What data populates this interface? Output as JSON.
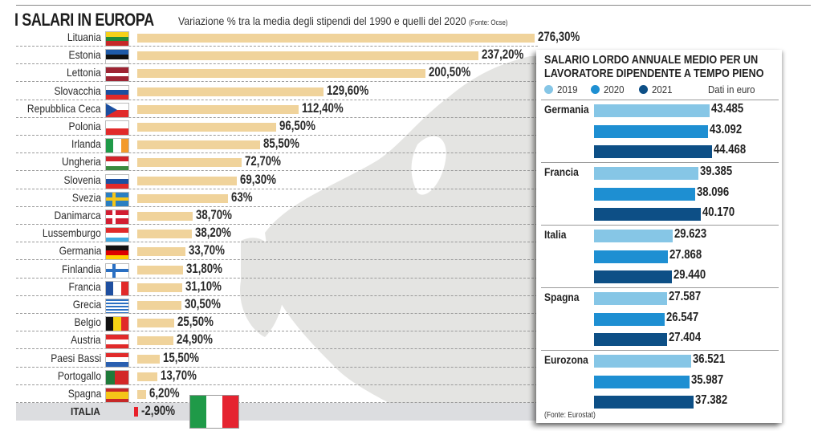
{
  "header": {
    "title": "I SALARI IN EUROPA",
    "subtitle": "Variazione % tra la media degli stipendi del 1990 e quelli del 2020",
    "subtitle_source": "(Fonte: Ocse)"
  },
  "colors": {
    "bar_positive": "#f0d39b",
    "bar_negative": "#e8202a",
    "year_2019": "#86c6e6",
    "year_2020": "#1e8fd2",
    "year_2021": "#0d4f86",
    "italia_row_bg": "#dcdde0"
  },
  "chart_data": [
    {
      "type": "bar",
      "orientation": "horizontal",
      "title": "I SALARI IN EUROPA",
      "subtitle": "Variazione % tra la media degli stipendi del 1990 e quelli del 2020 (Fonte: Ocse)",
      "unit": "%",
      "categories": [
        "Lituania",
        "Estonia",
        "Lettonia",
        "Slovacchia",
        "Repubblica Ceca",
        "Polonia",
        "Irlanda",
        "Ungheria",
        "Slovenia",
        "Svezia",
        "Danimarca",
        "Lussemburgo",
        "Germania",
        "Finlandia",
        "Francia",
        "Grecia",
        "Belgio",
        "Austria",
        "Paesi Bassi",
        "Portogallo",
        "Spagna",
        "ITALIA"
      ],
      "values": [
        276.3,
        237.2,
        200.5,
        129.6,
        112.4,
        96.5,
        85.5,
        72.7,
        69.3,
        63,
        38.7,
        38.2,
        33.7,
        31.8,
        31.1,
        30.5,
        25.5,
        24.9,
        15.5,
        13.7,
        6.2,
        -2.9
      ],
      "labels": [
        "276,30%",
        "237,20%",
        "200,50%",
        "129,60%",
        "112,40%",
        "96,50%",
        "85,50%",
        "72,70%",
        "69,30%",
        "63%",
        "38,70%",
        "38,20%",
        "33,70%",
        "31,80%",
        "31,10%",
        "30,50%",
        "25,50%",
        "24,90%",
        "15,50%",
        "13,70%",
        "6,20%",
        "-2,90%"
      ],
      "flags": [
        "lithuania",
        "estonia",
        "latvia",
        "slovakia",
        "czechia",
        "poland",
        "ireland",
        "hungary",
        "slovenia",
        "sweden",
        "denmark",
        "luxembourg",
        "germany",
        "finland",
        "france",
        "greece",
        "belgium",
        "austria",
        "netherlands",
        "portugal",
        "spain",
        "italy"
      ],
      "highlight": "ITALIA",
      "xlim": [
        0,
        280
      ],
      "grid": false
    },
    {
      "type": "bar",
      "orientation": "horizontal",
      "title": "SALARIO LORDO ANNUALE MEDIO PER UN LAVORATORE DIPENDENTE A TEMPO PIENO",
      "unit_note": "Dati in euro",
      "source": "(Fonte: Eurostat)",
      "legend": [
        "2019",
        "2020",
        "2021"
      ],
      "legend_position": "top",
      "categories": [
        "Germania",
        "Francia",
        "Italia",
        "Spagna",
        "Eurozona"
      ],
      "series": [
        {
          "name": "2019",
          "values": [
            43485,
            39385,
            29623,
            27587,
            36521
          ],
          "labels": [
            "43.485",
            "39.385",
            "29.623",
            "27.587",
            "36.521"
          ]
        },
        {
          "name": "2020",
          "values": [
            43092,
            38096,
            27868,
            26547,
            35987
          ],
          "labels": [
            "43.092",
            "38.096",
            "27.868",
            "26.547",
            "35.987"
          ]
        },
        {
          "name": "2021",
          "values": [
            44468,
            40170,
            29440,
            27404,
            37382
          ],
          "labels": [
            "44.468",
            "40.170",
            "29.440",
            "27.404",
            "37.382"
          ]
        }
      ],
      "xlim": [
        0,
        46000
      ]
    }
  ]
}
